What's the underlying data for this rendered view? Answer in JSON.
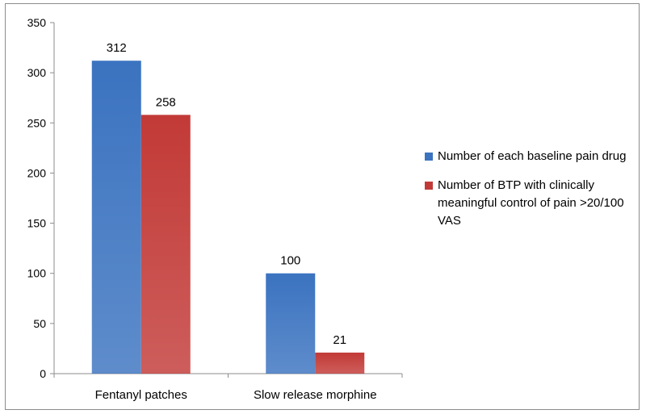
{
  "chart_data": {
    "type": "bar",
    "categories": [
      "Fentanyl patches",
      "Slow release morphine"
    ],
    "series": [
      {
        "name": "Number of each baseline pain drug",
        "values": [
          312,
          100
        ],
        "color": "#3b73c0"
      },
      {
        "name": "Number of BTP with clinically meaningful control of pain >20/100 VAS",
        "values": [
          258,
          21
        ],
        "color": "#c23a37"
      }
    ],
    "yticks": [
      "0",
      "50",
      "100",
      "150",
      "200",
      "250",
      "300",
      "350"
    ],
    "ylim": [
      0,
      350
    ],
    "grid": false,
    "legend_position": "right",
    "data_labels": true
  }
}
